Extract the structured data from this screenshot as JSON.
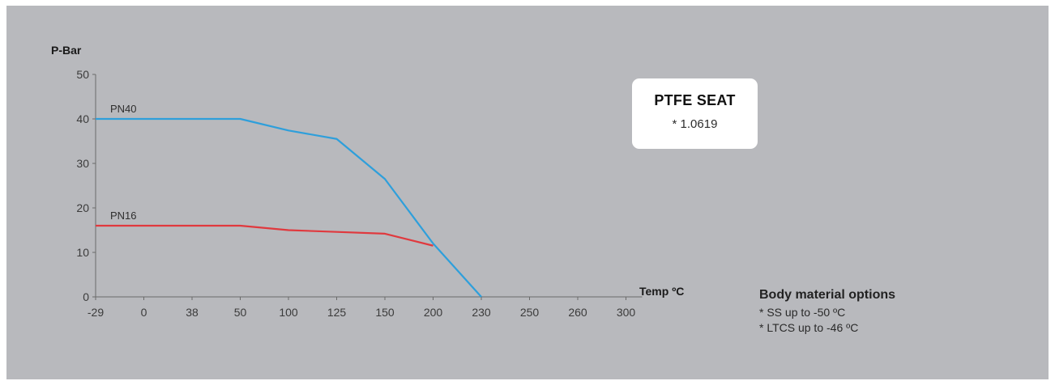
{
  "chart_data": {
    "type": "line",
    "ylabel": "P-Bar",
    "xlabel": "Temp ºC",
    "categories": [
      "-29",
      "0",
      "38",
      "50",
      "100",
      "125",
      "150",
      "200",
      "230",
      "250",
      "260",
      "300"
    ],
    "yticks": [
      0,
      10,
      20,
      30,
      40,
      50
    ],
    "ylim": [
      0,
      50
    ],
    "grid": false,
    "series": [
      {
        "name": "PN40",
        "color": "#2e9fdb",
        "points": [
          [
            0,
            40
          ],
          [
            3,
            40
          ],
          [
            4,
            37.4
          ],
          [
            5,
            35.5
          ],
          [
            6,
            26.5
          ],
          [
            7,
            12
          ],
          [
            8,
            0
          ]
        ]
      },
      {
        "name": "PN16",
        "color": "#e0393e",
        "points": [
          [
            0,
            16
          ],
          [
            3,
            16
          ],
          [
            4,
            15
          ],
          [
            5,
            14.6
          ],
          [
            6,
            14.2
          ],
          [
            7,
            11.5
          ]
        ]
      }
    ]
  },
  "seat_box": {
    "title": "PTFE SEAT",
    "subtitle": "* 1.0619"
  },
  "body_material": {
    "title": "Body material options",
    "items": [
      "* SS up to -50 ºC",
      "* LTCS up to -46 ºC"
    ]
  }
}
